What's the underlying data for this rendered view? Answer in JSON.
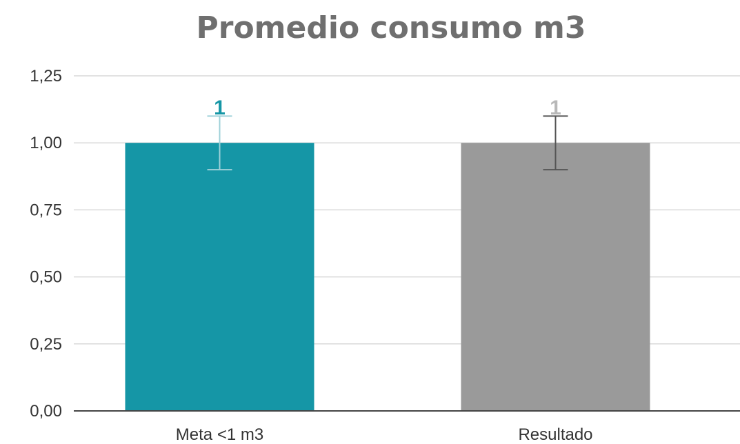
{
  "chart_data": {
    "type": "bar",
    "title": "Promedio consumo m3",
    "categories": [
      "Meta <1 m3",
      "Resultado"
    ],
    "values": [
      1.0,
      1.0
    ],
    "data_labels": [
      "1",
      "1"
    ],
    "error_bars": [
      {
        "low": 0.9,
        "high": 1.1
      },
      {
        "low": 0.9,
        "high": 1.1
      }
    ],
    "colors": [
      "#1596a6",
      "#9a9a9a"
    ],
    "label_colors": [
      "#1596a6",
      "#b8b8b8"
    ],
    "error_bar_colors": [
      "#9fd1d9",
      "#555555"
    ],
    "xlabel": "",
    "ylabel": "",
    "ylim": [
      0,
      1.25
    ],
    "yticks": [
      0,
      0.25,
      0.5,
      0.75,
      1.0,
      1.25
    ],
    "ytick_labels": [
      "0,00",
      "0,25",
      "0,50",
      "0,75",
      "1,00",
      "1,25"
    ],
    "grid": true,
    "legend": "none"
  }
}
